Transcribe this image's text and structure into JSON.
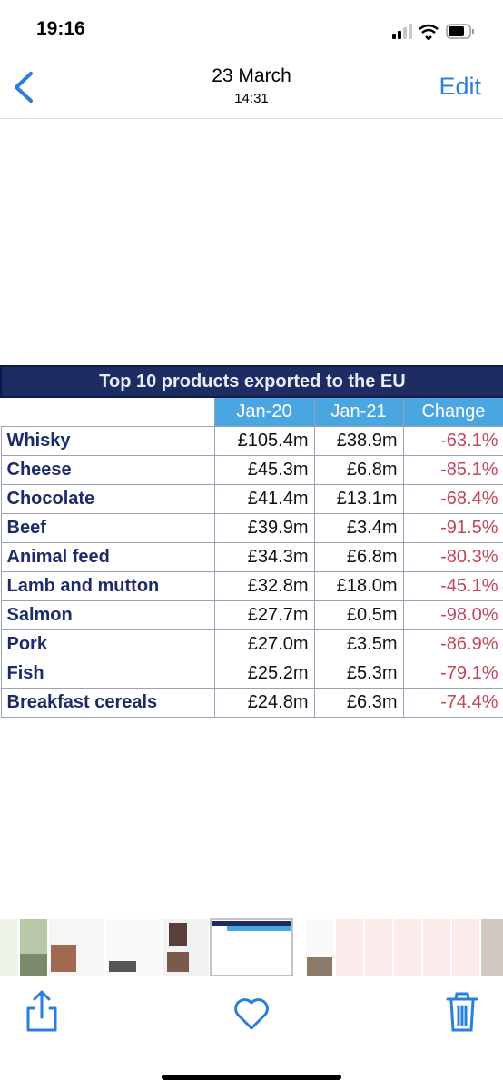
{
  "status_bar": {
    "time": "19:16"
  },
  "nav": {
    "date": "23 March",
    "time": "14:31",
    "edit": "Edit"
  },
  "table": {
    "title": "Top 10 products exported to the EU",
    "headers": [
      "Jan-20",
      "Jan-21",
      "Change"
    ],
    "rows": [
      [
        "Whisky",
        "£105.4m",
        "£38.9m",
        "-63.1%"
      ],
      [
        "Cheese",
        "£45.3m",
        "£6.8m",
        "-85.1%"
      ],
      [
        "Chocolate",
        "£41.4m",
        "£13.1m",
        "-68.4%"
      ],
      [
        "Beef",
        "£39.9m",
        "£3.4m",
        "-91.5%"
      ],
      [
        "Animal feed",
        "£34.3m",
        "£6.8m",
        "-80.3%"
      ],
      [
        "Lamb and mutton",
        "£32.8m",
        "£18.0m",
        "-45.1%"
      ],
      [
        "Salmon",
        "£27.7m",
        "£0.5m",
        "-98.0%"
      ],
      [
        "Pork",
        "£27.0m",
        "£3.5m",
        "-86.9%"
      ],
      [
        "Fish",
        "£25.2m",
        "£5.3m",
        "-79.1%"
      ],
      [
        "Breakfast cereals",
        "£24.8m",
        "£6.3m",
        "-74.4%"
      ]
    ]
  }
}
